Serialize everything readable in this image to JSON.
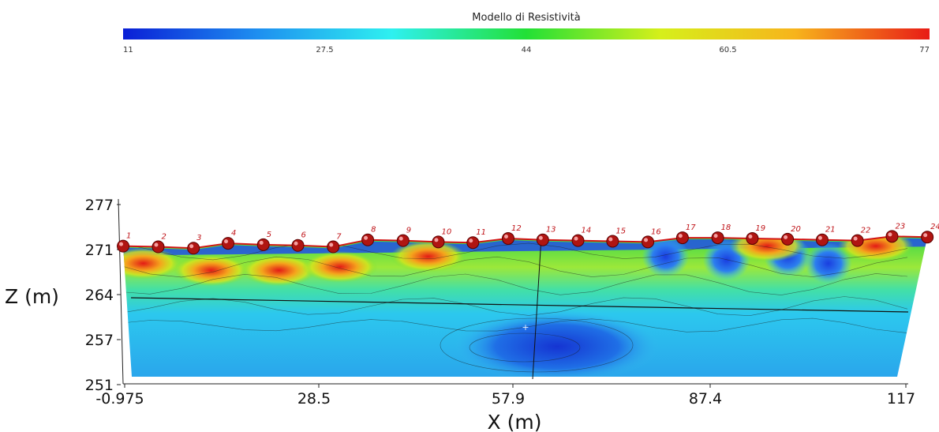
{
  "chart_data": {
    "type": "heatmap",
    "title": "Modello di Resistività",
    "colorbar": {
      "min": 11,
      "max": 77,
      "ticks": [
        "11",
        "27.5",
        "44",
        "60.5",
        "77"
      ],
      "colors": [
        "#0a1fd6",
        "#1e8ff0",
        "#2ef0f0",
        "#22e036",
        "#d6ef1a",
        "#f7b41c",
        "#e81c16"
      ]
    },
    "xlabel": "X (m)",
    "ylabel": "Z (m)",
    "xlim": [
      -0.975,
      117
    ],
    "ylim": [
      251,
      277
    ],
    "x_ticks": [
      "-0.975",
      "28.5",
      "57.9",
      "87.4",
      "117"
    ],
    "y_ticks": [
      "277",
      "271",
      "264",
      "257",
      "251"
    ],
    "electrodes": {
      "labels": [
        "1",
        "2",
        "3",
        "4",
        "5",
        "6",
        "7",
        "8",
        "9",
        "10",
        "11",
        "12",
        "13",
        "14",
        "15",
        "16",
        "17",
        "18",
        "19",
        "20",
        "21",
        "22",
        "23",
        "24"
      ],
      "x": [
        -0.97,
        4.2,
        9.4,
        14.5,
        19.7,
        24.8,
        30.0,
        35.1,
        40.3,
        45.5,
        50.6,
        55.8,
        60.9,
        66.1,
        71.2,
        76.4,
        81.5,
        86.7,
        91.8,
        97.0,
        102.1,
        107.3,
        112.4,
        117.6
      ],
      "z": [
        271.0,
        270.9,
        270.7,
        271.4,
        271.2,
        271.1,
        270.9,
        271.9,
        271.8,
        271.6,
        271.5,
        272.1,
        271.9,
        271.8,
        271.7,
        271.6,
        272.2,
        272.2,
        272.1,
        272.0,
        271.9,
        271.8,
        272.4,
        272.3
      ]
    },
    "resistivity_anomalies": [
      {
        "x": 2,
        "z": 268.5,
        "value": 70
      },
      {
        "x": 12,
        "z": 267.5,
        "value": 60
      },
      {
        "x": 22,
        "z": 267.5,
        "value": 72
      },
      {
        "x": 31,
        "z": 268.0,
        "value": 70
      },
      {
        "x": 44,
        "z": 269.5,
        "value": 66
      },
      {
        "x": 79,
        "z": 269.5,
        "value": 18
      },
      {
        "x": 88,
        "z": 269.0,
        "value": 18
      },
      {
        "x": 97,
        "z": 269.5,
        "value": 18
      },
      {
        "x": 103,
        "z": 268.5,
        "value": 22
      },
      {
        "x": 110,
        "z": 271.0,
        "value": 74
      },
      {
        "x": 94,
        "z": 271.0,
        "value": 70
      },
      {
        "x": 63,
        "z": 256.5,
        "value": 16
      }
    ],
    "grid": false,
    "legend": "colorbar-top"
  }
}
